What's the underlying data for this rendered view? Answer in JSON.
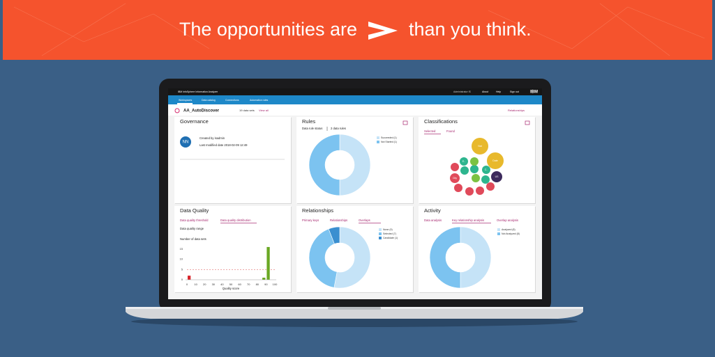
{
  "banner": {
    "before": "The opportunities are",
    "after": "than you think."
  },
  "header": {
    "product": "IBM InfoSphere Information Analyzer",
    "user": "Administrator IS",
    "links": [
      "About",
      "Help",
      "Sign out"
    ],
    "logo": "IBM"
  },
  "tabs": [
    "Workspaces",
    "Data catalog",
    "Connections",
    "Automation rules"
  ],
  "workspace": {
    "name": "AA_AutoDiscover",
    "data_sets": "19 data sets",
    "view_all": "View all",
    "relationships": "Relationships"
  },
  "governance": {
    "title": "Governance",
    "initials": "NN",
    "created": "Created by isadmin",
    "modified": "Last modified date 2018-02-09 12:49"
  },
  "rules": {
    "title": "Rules",
    "status": "Data rule status",
    "count": "2 data rules",
    "chart": {
      "type": "pie",
      "categories": [
        "Succeeded (1)",
        "Not Started (1)"
      ],
      "values": [
        1,
        1
      ],
      "colors": [
        "#c5e3f7",
        "#7cc3f0"
      ]
    }
  },
  "classifications": {
    "title": "Classifications",
    "tabs": [
      "Selected",
      "Found"
    ],
    "chart": {
      "type": "bubble",
      "labels": [
        "Nat",
        "Date",
        "US",
        "E..",
        "City",
        "C..",
        null,
        null,
        null,
        null,
        null,
        null,
        null,
        null,
        null,
        null
      ],
      "sizes": [
        12,
        12,
        8,
        6,
        7,
        6,
        6,
        6,
        6,
        6,
        6,
        6,
        6,
        6,
        6,
        6
      ],
      "colors": [
        "#e8b92c",
        "#e8b92c",
        "#3d2a5c",
        "#2db58e",
        "#e04a5a",
        "#2db58e",
        "#2db58e",
        "#7cc242",
        "#2db58e",
        "#7cc242",
        "#2db58e",
        "#e04a5a",
        "#e04a5a",
        "#e04a5a",
        "#e04a5a",
        "#e04a5a"
      ]
    }
  },
  "data_quality": {
    "title": "Data Quality",
    "tabs": [
      "Data quality threshold",
      "Data quality distribution"
    ],
    "range": "Data quality range",
    "y_label": "Number of data sets",
    "x_label": "Quality score",
    "chart": {
      "type": "histogram",
      "bins": [
        0,
        5,
        10,
        15,
        20,
        25,
        30,
        35,
        40,
        45,
        50,
        55,
        60,
        65,
        70,
        75,
        80,
        85,
        90,
        95,
        100
      ],
      "values": [
        2,
        0,
        0,
        0,
        0,
        0,
        0,
        0,
        0,
        0,
        0,
        0,
        0,
        0,
        0,
        0,
        0,
        1,
        16,
        0
      ],
      "colors": [
        "#d9252b",
        "#d9252b",
        "#d9252b",
        "#d9252b",
        "#d9252b",
        "#d9252b",
        "#d9252b",
        "#d9252b",
        "#d9252b",
        "#d9252b",
        "#6aa823",
        "#6aa823",
        "#6aa823",
        "#6aa823",
        "#6aa823",
        "#6aa823",
        "#6aa823",
        "#6aa823",
        "#6aa823",
        "#6aa823"
      ],
      "threshold": 5,
      "xlim": [
        0,
        100
      ],
      "xticks": [
        0,
        10,
        20,
        30,
        40,
        50,
        60,
        70,
        80,
        90,
        100
      ],
      "ylim": [
        0,
        17
      ],
      "yticks": [
        0,
        5,
        10,
        15
      ]
    }
  },
  "relationships": {
    "title": "Relationships",
    "tabs": [
      "Primary keys",
      "Relationships",
      "Overlaps"
    ],
    "chart": {
      "type": "pie",
      "categories": [
        "None (9)",
        "Selected (7)",
        "Candidate (1)"
      ],
      "values": [
        9,
        7,
        1
      ],
      "colors": [
        "#c5e3f7",
        "#7cc3f0",
        "#3b8fd0"
      ]
    }
  },
  "activity": {
    "title": "Activity",
    "tabs": [
      "Data analysis",
      "Key relationship analysis",
      "Overlap analysis"
    ],
    "chart": {
      "type": "pie",
      "categories": [
        "Analyzed (8)",
        "Not Analyzed (8)"
      ],
      "values": [
        8,
        8
      ],
      "colors": [
        "#c5e3f7",
        "#7cc3f0"
      ]
    }
  }
}
